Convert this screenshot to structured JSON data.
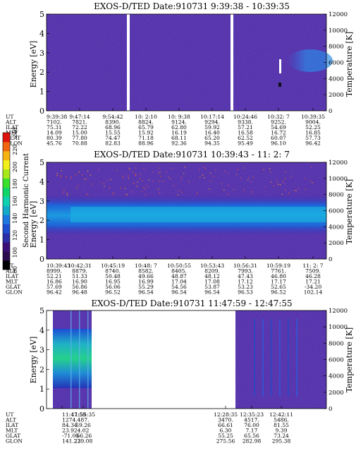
{
  "colorbar": {
    "label": "Second Harmonic Current",
    "ticks": [
      "240",
      "220",
      "200",
      "180",
      "160",
      "140",
      "120",
      "100",
      "80"
    ],
    "colors": [
      "#000000",
      "#2a0c4e",
      "#3b0f78",
      "#2b2ea6",
      "#1f4fd1",
      "#1d78e0",
      "#15a9c8",
      "#0fd0b0",
      "#10d66a",
      "#39e02c",
      "#a6e81a",
      "#f1f119",
      "#f6b413",
      "#f06510",
      "#e0140f"
    ]
  },
  "chart_data": [
    {
      "type": "heatmap",
      "title": "EXOS-D/TED   Date:910731   9:39:38 - 10:39:35",
      "ylabel": "Energy [eV]",
      "y2label": "Temperature [K]",
      "ylim": [
        0,
        5
      ],
      "y2lim": [
        0,
        12000
      ],
      "yticks": [
        "0",
        "1",
        "2",
        "3",
        "4",
        "5"
      ],
      "y2ticks": [
        "0",
        "2000",
        "4000",
        "6000",
        "8000",
        "10000",
        "12000"
      ],
      "gaps": [
        "9:56:12",
        "10:17:14"
      ],
      "features": [
        {
          "name": "white streak",
          "time": "10:32:7",
          "energy": [
            2.0,
            2.5
          ]
        },
        {
          "name": "dark spot",
          "time": "10:32:7",
          "energy": [
            1.15,
            1.3
          ]
        },
        {
          "name": "enhancement",
          "time": "10:34:00 - 10:39:35",
          "energy": [
            2.0,
            3.2
          ]
        }
      ],
      "orbit": {
        "labels": [
          "UT",
          "ALT",
          "ILAT",
          "MLT",
          "GLAT",
          "GLON"
        ],
        "columns": [
          [
            "9:39:38",
            "7102.",
            "75.31",
            "14.09",
            "80.39",
            "45.76"
          ],
          [
            "9:47:14",
            "7821.",
            "72.22",
            "15.00",
            "77.80",
            "70.88"
          ],
          [
            "9:54:42",
            "8390.",
            "68.96",
            "15.55",
            "74.47",
            "82.83"
          ],
          [
            "10: 2:10",
            "8824.",
            "65.79",
            "15.92",
            "71.18",
            "88.96"
          ],
          [
            "10: 9:38",
            "9124.",
            "62.80",
            "16.19",
            "68.11",
            "92.36"
          ],
          [
            "10:17:14",
            "9294.",
            "59.92",
            "16.40",
            "65.20",
            "94.35"
          ],
          [
            "10:24:46",
            "9338.",
            "57.21",
            "16.58",
            "62.52",
            "95.49"
          ],
          [
            "10:32: 7",
            "9252.",
            "54.69",
            "16.72",
            "60.07",
            "96.10"
          ],
          [
            "10:39:35",
            "9004.",
            "52.25",
            "16.85",
            "57.73",
            "96.42"
          ]
        ]
      }
    },
    {
      "type": "heatmap",
      "title": "EXOS-D/TED   Date:910731   10:39:43 - 11: 2: 7",
      "ylabel": "Energy [eV]",
      "y2label": "Temperature [K]",
      "ylim": [
        0,
        5
      ],
      "y2lim": [
        0,
        12000
      ],
      "yticks": [
        "0",
        "1",
        "2",
        "3",
        "4",
        "5"
      ],
      "y2ticks": [
        "0",
        "2000",
        "4000",
        "6000",
        "8000",
        "10000",
        "12000"
      ],
      "band": {
        "energy_center": 2.15,
        "energy_width": 1.1
      },
      "orbit": {
        "labels": [
          "UT",
          "ALT",
          "ILAT",
          "MLT",
          "GLAT",
          "GLON"
        ],
        "columns": [
          [
            "10:39:43",
            "8999.",
            "52.21",
            "16.86",
            "57.69",
            "96.42"
          ],
          [
            "10:42:31",
            "8879.",
            "51.33",
            "16.90",
            "56.86",
            "96.48"
          ],
          [
            "10:45:19",
            "8740.",
            "50.48",
            "16.95",
            "56.06",
            "96.52"
          ],
          [
            "10:48: 7",
            "8582.",
            "49.66",
            "16.99",
            "55.29",
            "96.54"
          ],
          [
            "10:50:55",
            "8405.",
            "48.87",
            "17.04",
            "54.56",
            "96.54"
          ],
          [
            "10:53:43",
            "8209.",
            "48.12",
            "17.08",
            "53.87",
            "96.54"
          ],
          [
            "10:56:31",
            "7993.",
            "47.43",
            "17.12",
            "53.23",
            "96.53"
          ],
          [
            "10:59:19",
            "7761.",
            "46.80",
            "17.17",
            "52.65",
            "96.52"
          ],
          [
            "11: 2: 7",
            "7509.",
            "46.28",
            "17.21",
            "-34.20",
            "102.14"
          ]
        ]
      }
    },
    {
      "type": "heatmap",
      "title": "EXOS-D/TED   Date:910731   11:47:59 - 12:47:55",
      "ylabel": "Energy [eV]",
      "y2label": "Temperature [K]",
      "ylim": [
        0,
        5
      ],
      "y2lim": [
        0,
        12000
      ],
      "yticks": [
        "0",
        "1",
        "2",
        "3",
        "4",
        "5"
      ],
      "y2ticks": [
        "0",
        "2000",
        "4000",
        "6000",
        "8000",
        "10000",
        "12000"
      ],
      "data_intervals": [
        "11:47:59 - 11:55:35",
        "12:28:35 - 12:47:55"
      ],
      "orbit": {
        "labels": [
          "UT",
          "ALT",
          "ILAT",
          "MLT",
          "GLAT",
          "GLON"
        ],
        "columns": [
          [
            "11:47:59",
            "1274.",
            "84.34",
            "23.92",
            "-71.05",
            "141.23"
          ],
          [
            "11:55:35",
            "487.",
            "59.26",
            "4.02",
            "-66.26",
            "229.08"
          ],
          [
            "12:28:35",
            "3470.",
            "66.61",
            "6.30",
            "55.25",
            "275.56"
          ],
          [
            "12:35:23",
            "4517.",
            "76.00",
            "7.17",
            "65.56",
            "282.98"
          ],
          [
            "12:42:11",
            "5486.",
            "81.55",
            "9.39",
            "73.24",
            "295.38"
          ]
        ]
      }
    }
  ]
}
